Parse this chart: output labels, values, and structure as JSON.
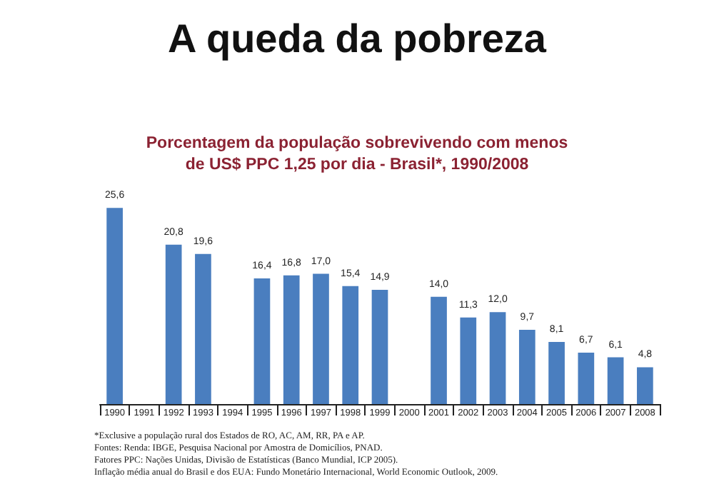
{
  "chart_data": {
    "type": "bar",
    "title": "A queda da pobreza",
    "subtitle": "Porcentagem da população sobrevivendo com menos\nde US$ PPC 1,25 por dia - Brasil*, 1990/2008",
    "categories": [
      "1990",
      "1991",
      "1992",
      "1993",
      "1994",
      "1995",
      "1996",
      "1997",
      "1998",
      "1999",
      "2000",
      "2001",
      "2002",
      "2003",
      "2004",
      "2005",
      "2006",
      "2007",
      "2008"
    ],
    "values": [
      25.6,
      null,
      20.8,
      19.6,
      null,
      16.4,
      16.8,
      17.0,
      15.4,
      14.9,
      null,
      14.0,
      11.3,
      12.0,
      9.7,
      8.1,
      6.7,
      6.1,
      4.8
    ],
    "value_labels": [
      "25,6",
      null,
      "20,8",
      "19,6",
      null,
      "16,4",
      "16,8",
      "17,0",
      "15,4",
      "14,9",
      null,
      "14,0",
      "11,3",
      "12,0",
      "9,7",
      "8,1",
      "6,7",
      "6,1",
      "4,8"
    ],
    "color": "#4a7ebf",
    "tick_labels": "x",
    "annotations": [
      "*Exclusive a população rural dos Estados de RO, AC, AM, RR, PA e AP.",
      "Fontes: Renda: IBGE, Pesquisa Nacional por Amostra de Domicílios, PNAD.",
      "Fatores PPC: Nações Unidas, Divisão de Estatísticas (Banco Mundial, ICP 2005).",
      "Inflação média anual do Brasil e dos EUA: Fundo Monetário Internacional, World Economic Outlook, 2009."
    ]
  }
}
